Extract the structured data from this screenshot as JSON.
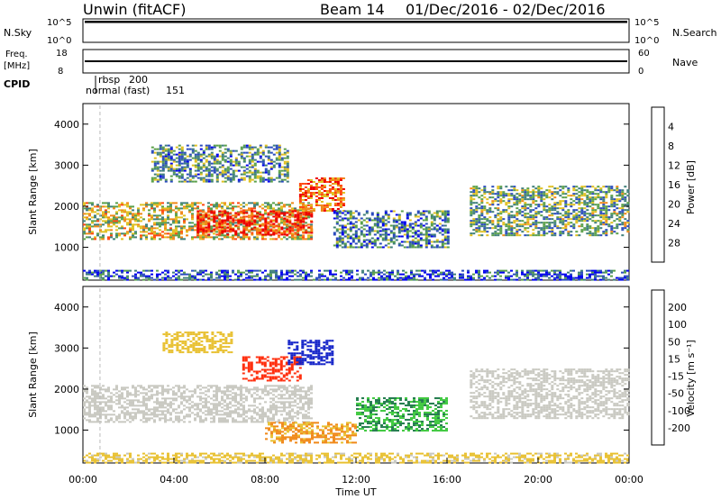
{
  "header": {
    "station": "Unwin (fitACF)",
    "beam": "Beam 14",
    "date_range": "01/Dec/2016 - 02/Dec/2016"
  },
  "colors": {
    "accent_line": "#000000",
    "grid": "#bbbbbb"
  },
  "chart_data": [
    {
      "type": "line",
      "panel": "noise",
      "left_label": "N.Sky",
      "right_label": "N.Search",
      "yticks_left": [
        "10^5",
        "10^0"
      ],
      "yticks_right": [
        "10^5",
        "10^0"
      ],
      "note": "noise levels near top of panel throughout the period"
    },
    {
      "type": "line",
      "panel": "frequency",
      "left_label": [
        "Freq.",
        "[MHz]"
      ],
      "right_label": "Nave",
      "yticks_left": [
        "18",
        "8"
      ],
      "yticks_right": [
        "60",
        "0"
      ],
      "frequency_mhz": 12
    },
    {
      "type": "table",
      "panel": "cpid",
      "label": "CPID",
      "modes": [
        {
          "name": "rbsp",
          "id": "200",
          "start_hour": 0.75
        },
        {
          "name": "normal (fast)",
          "id": "151",
          "start_hour": 0.0
        }
      ]
    },
    {
      "type": "heatmap",
      "panel": "power",
      "ylabel": "Slant Range [km]",
      "ylim": [
        200,
        4500
      ],
      "yticks": [
        "1000",
        "2000",
        "3000",
        "4000"
      ],
      "xlim_hours": [
        0,
        24
      ],
      "colorbar": {
        "label": "Power [dB]",
        "ticks": [
          "4",
          "8",
          "12",
          "16",
          "20",
          "24",
          "28"
        ],
        "colors": [
          "#0000ee",
          "#2a4bbd",
          "#3f7f7a",
          "#5aa04a",
          "#e0c020",
          "#f08818",
          "#ff4810",
          "#ee0000"
        ]
      },
      "regions": [
        {
          "start_h": 0.0,
          "end_h": 10.0,
          "r_min": 1200,
          "r_max": 2100,
          "level": 0.55
        },
        {
          "start_h": 5.0,
          "end_h": 10.0,
          "r_min": 1300,
          "r_max": 1900,
          "level": 0.9
        },
        {
          "start_h": 3.0,
          "end_h": 9.0,
          "r_min": 2600,
          "r_max": 3500,
          "level": 0.35
        },
        {
          "start_h": 9.5,
          "end_h": 11.5,
          "r_min": 1900,
          "r_max": 2700,
          "level": 0.75
        },
        {
          "start_h": 11.0,
          "end_h": 16.0,
          "r_min": 1000,
          "r_max": 1900,
          "level": 0.3
        },
        {
          "start_h": 17.0,
          "end_h": 24.0,
          "r_min": 1300,
          "r_max": 2500,
          "level": 0.4
        },
        {
          "start_h": 0.0,
          "end_h": 24.0,
          "r_min": 200,
          "r_max": 450,
          "level": 0.2
        }
      ]
    },
    {
      "type": "heatmap",
      "panel": "velocity",
      "ylabel": "Slant Range [km]",
      "ylim": [
        200,
        4500
      ],
      "yticks": [
        "1000",
        "2000",
        "3000",
        "4000"
      ],
      "xlabel": "Time UT",
      "xticks": [
        "00:00",
        "04:00",
        "08:00",
        "12:00",
        "16:00",
        "20:00",
        "00:00"
      ],
      "xlim_hours": [
        0,
        24
      ],
      "colorbar": {
        "label": "Velocity [m s⁻¹]",
        "ticks": [
          "200",
          "100",
          "50",
          "15",
          "-15",
          "-50",
          "-100",
          "-200"
        ],
        "colors": [
          "#1020c8",
          "#1f7a4a",
          "#3cc83c",
          "#c8c8c0",
          "#e8c030",
          "#f08818",
          "#ff3010"
        ]
      },
      "regions": [
        {
          "start_h": 0.0,
          "end_h": 10.0,
          "r_min": 1200,
          "r_max": 2100,
          "v": 0
        },
        {
          "start_h": 12.0,
          "end_h": 16.0,
          "r_min": 1000,
          "r_max": 1800,
          "v": 60
        },
        {
          "start_h": 3.5,
          "end_h": 6.5,
          "r_min": 2900,
          "r_max": 3400,
          "v": -40
        },
        {
          "start_h": 7.0,
          "end_h": 9.5,
          "r_min": 2200,
          "r_max": 2800,
          "v": -150
        },
        {
          "start_h": 9.0,
          "end_h": 11.0,
          "r_min": 2600,
          "r_max": 3200,
          "v": 180
        },
        {
          "start_h": 8.0,
          "end_h": 12.0,
          "r_min": 700,
          "r_max": 1200,
          "v": -60
        },
        {
          "start_h": 17.0,
          "end_h": 24.0,
          "r_min": 1300,
          "r_max": 2500,
          "v": 0
        },
        {
          "start_h": 0.0,
          "end_h": 24.0,
          "r_min": 200,
          "r_max": 450,
          "v": -30
        }
      ]
    }
  ]
}
